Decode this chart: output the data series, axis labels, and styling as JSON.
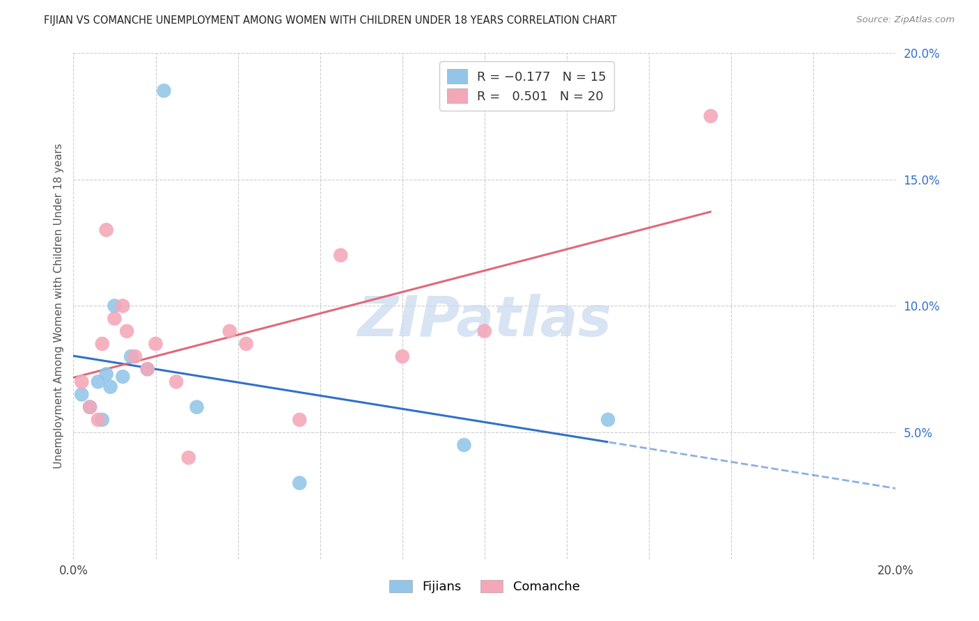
{
  "title": "FIJIAN VS COMANCHE UNEMPLOYMENT AMONG WOMEN WITH CHILDREN UNDER 18 YEARS CORRELATION CHART",
  "source": "Source: ZipAtlas.com",
  "ylabel": "Unemployment Among Women with Children Under 18 years",
  "xlim": [
    0.0,
    0.2
  ],
  "ylim": [
    0.0,
    0.2
  ],
  "fijian_R": -0.177,
  "fijian_N": 15,
  "comanche_R": 0.501,
  "comanche_N": 20,
  "fijian_color": "#92c5e8",
  "comanche_color": "#f4a7b8",
  "fijian_line_color": "#3070c8",
  "comanche_line_color": "#e06878",
  "watermark_color": "#c8d8ee",
  "fijian_x": [
    0.002,
    0.004,
    0.006,
    0.007,
    0.008,
    0.009,
    0.01,
    0.012,
    0.014,
    0.018,
    0.022,
    0.03,
    0.055,
    0.095,
    0.13
  ],
  "fijian_y": [
    0.065,
    0.06,
    0.07,
    0.055,
    0.073,
    0.068,
    0.1,
    0.072,
    0.08,
    0.075,
    0.185,
    0.06,
    0.03,
    0.045,
    0.055
  ],
  "comanche_x": [
    0.002,
    0.004,
    0.006,
    0.007,
    0.008,
    0.01,
    0.012,
    0.013,
    0.015,
    0.018,
    0.02,
    0.025,
    0.028,
    0.038,
    0.042,
    0.055,
    0.065,
    0.08,
    0.1,
    0.155
  ],
  "comanche_y": [
    0.07,
    0.06,
    0.055,
    0.085,
    0.13,
    0.095,
    0.1,
    0.09,
    0.08,
    0.075,
    0.085,
    0.07,
    0.04,
    0.09,
    0.085,
    0.055,
    0.12,
    0.08,
    0.09,
    0.175
  ]
}
